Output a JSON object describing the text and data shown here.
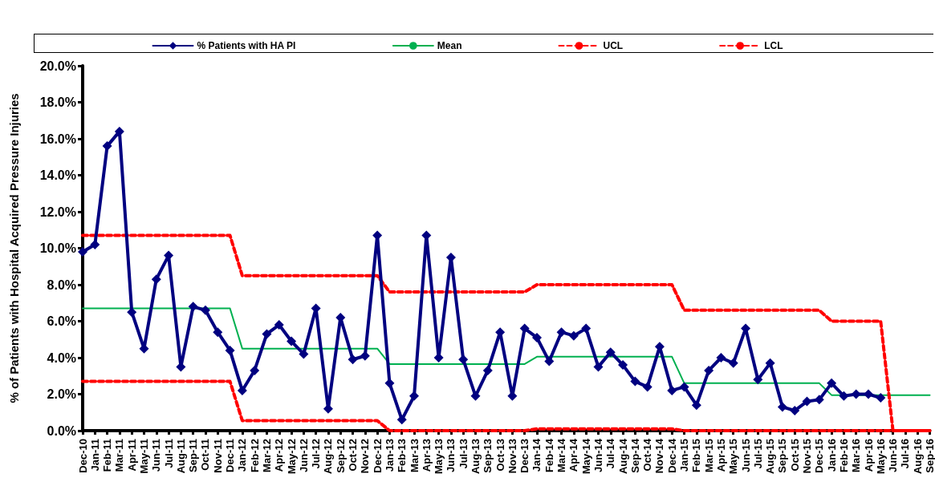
{
  "chart_data": {
    "type": "line",
    "ylabel": "% of Patients with Hospital Acquired Pressure Injuries",
    "categories": [
      "Dec-10",
      "Jan-11",
      "Feb-11",
      "Mar-11",
      "Apr-11",
      "May-11",
      "Jun-11",
      "Jul-11",
      "Aug-11",
      "Sep-11",
      "Oct-11",
      "Nov-11",
      "Dec-11",
      "Jan-12",
      "Feb-12",
      "Mar-12",
      "Apr-12",
      "May-12",
      "Jun-12",
      "Jul-12",
      "Aug-12",
      "Sep-12",
      "Oct-12",
      "Nov-12",
      "Dec-12",
      "Jan-13",
      "Feb-13",
      "Mar-13",
      "Apr-13",
      "May-13",
      "Jun-13",
      "Jul-13",
      "Aug-13",
      "Sep-13",
      "Oct-13",
      "Nov-13",
      "Dec-13",
      "Jan-14",
      "Feb-14",
      "Mar-14",
      "Apr-14",
      "May-14",
      "Jun-14",
      "Jul-14",
      "Aug-14",
      "Sep-14",
      "Oct-14",
      "Nov-14",
      "Dec-14",
      "Jan-15",
      "Feb-15",
      "Mar-15",
      "Apr-15",
      "May-15",
      "Jun-15",
      "Jul-15",
      "Aug-15",
      "Sep-15",
      "Oct-15",
      "Nov-15",
      "Dec-15",
      "Jan-16",
      "Feb-16",
      "Mar-16",
      "Apr-16",
      "May-16",
      "Jun-16",
      "Jul-16",
      "Aug-16",
      "Sep-16"
    ],
    "series": [
      {
        "name": "% Patients with HA PI",
        "color": "#000080",
        "marker": "diamond",
        "line_style": "solid",
        "values": [
          9.8,
          10.2,
          15.6,
          16.4,
          6.5,
          4.5,
          8.3,
          9.6,
          3.5,
          6.8,
          6.6,
          5.4,
          4.4,
          2.2,
          3.3,
          5.3,
          5.8,
          4.9,
          4.2,
          6.7,
          1.2,
          6.2,
          3.9,
          4.1,
          10.7,
          2.6,
          0.6,
          1.9,
          10.7,
          4.0,
          9.5,
          3.9,
          1.9,
          3.3,
          5.4,
          1.9,
          5.6,
          5.1,
          3.8,
          5.4,
          5.2,
          5.6,
          3.5,
          4.3,
          3.6,
          2.7,
          2.4,
          4.6,
          2.2,
          2.4,
          1.4,
          3.3,
          4.0,
          3.7,
          5.6,
          2.8,
          3.7,
          1.3,
          1.1,
          1.6,
          1.7,
          2.6,
          1.9,
          2.0,
          2.0,
          1.8,
          null,
          null,
          null,
          null
        ]
      },
      {
        "name": "Mean",
        "color": "#00b050",
        "marker": "none",
        "line_style": "solid",
        "values": [
          6.7,
          6.7,
          6.7,
          6.7,
          6.7,
          6.7,
          6.7,
          6.7,
          6.7,
          6.7,
          6.7,
          6.7,
          6.7,
          4.5,
          4.5,
          4.5,
          4.5,
          4.5,
          4.5,
          4.5,
          4.5,
          4.5,
          4.5,
          4.5,
          4.5,
          3.65,
          3.65,
          3.65,
          3.65,
          3.65,
          3.65,
          3.65,
          3.65,
          3.65,
          3.65,
          3.65,
          3.65,
          4.05,
          4.05,
          4.05,
          4.05,
          4.05,
          4.05,
          4.05,
          4.05,
          4.05,
          4.05,
          4.05,
          4.05,
          2.6,
          2.6,
          2.6,
          2.6,
          2.6,
          2.6,
          2.6,
          2.6,
          2.6,
          2.6,
          2.6,
          2.6,
          1.95,
          1.95,
          1.95,
          1.95,
          1.95,
          1.95,
          1.95,
          1.95,
          1.95
        ]
      },
      {
        "name": "UCL",
        "color": "#ff0000",
        "marker": "none",
        "line_style": "dashed",
        "values": [
          10.7,
          10.7,
          10.7,
          10.7,
          10.7,
          10.7,
          10.7,
          10.7,
          10.7,
          10.7,
          10.7,
          10.7,
          10.7,
          8.5,
          8.5,
          8.5,
          8.5,
          8.5,
          8.5,
          8.5,
          8.5,
          8.5,
          8.5,
          8.5,
          8.5,
          7.6,
          7.6,
          7.6,
          7.6,
          7.6,
          7.6,
          7.6,
          7.6,
          7.6,
          7.6,
          7.6,
          7.6,
          8.0,
          8.0,
          8.0,
          8.0,
          8.0,
          8.0,
          8.0,
          8.0,
          8.0,
          8.0,
          8.0,
          8.0,
          6.6,
          6.6,
          6.6,
          6.6,
          6.6,
          6.6,
          6.6,
          6.6,
          6.6,
          6.6,
          6.6,
          6.6,
          6.0,
          6.0,
          6.0,
          6.0,
          6.0,
          0,
          0,
          0,
          0
        ]
      },
      {
        "name": "LCL",
        "color": "#ff0000",
        "marker": "none",
        "line_style": "dashed",
        "values": [
          2.7,
          2.7,
          2.7,
          2.7,
          2.7,
          2.7,
          2.7,
          2.7,
          2.7,
          2.7,
          2.7,
          2.7,
          2.7,
          0.55,
          0.55,
          0.55,
          0.55,
          0.55,
          0.55,
          0.55,
          0.55,
          0.55,
          0.55,
          0.55,
          0.55,
          0,
          0,
          0,
          0,
          0,
          0,
          0,
          0,
          0,
          0,
          0,
          0,
          0.1,
          0.1,
          0.1,
          0.1,
          0.1,
          0.1,
          0.1,
          0.1,
          0.1,
          0.1,
          0.1,
          0.1,
          0,
          0,
          0,
          0,
          0,
          0,
          0,
          0,
          0,
          0,
          0,
          0,
          0,
          0,
          0,
          0,
          0,
          0,
          0,
          0,
          0
        ]
      }
    ],
    "ylim": [
      0,
      20
    ],
    "yticks": [
      {
        "value": 0,
        "label": "0.0%"
      },
      {
        "value": 2,
        "label": "2.0%"
      },
      {
        "value": 4,
        "label": "4.0%"
      },
      {
        "value": 6,
        "label": "6.0%"
      },
      {
        "value": 8,
        "label": "8.0%"
      },
      {
        "value": 10,
        "label": "10.0%"
      },
      {
        "value": 12,
        "label": "12.0%"
      },
      {
        "value": 14,
        "label": "14.0%"
      },
      {
        "value": 16,
        "label": "16.0%"
      },
      {
        "value": 18,
        "label": "18.0%"
      },
      {
        "value": 20,
        "label": "20.0%"
      }
    ],
    "grid": false,
    "legend": "top"
  }
}
